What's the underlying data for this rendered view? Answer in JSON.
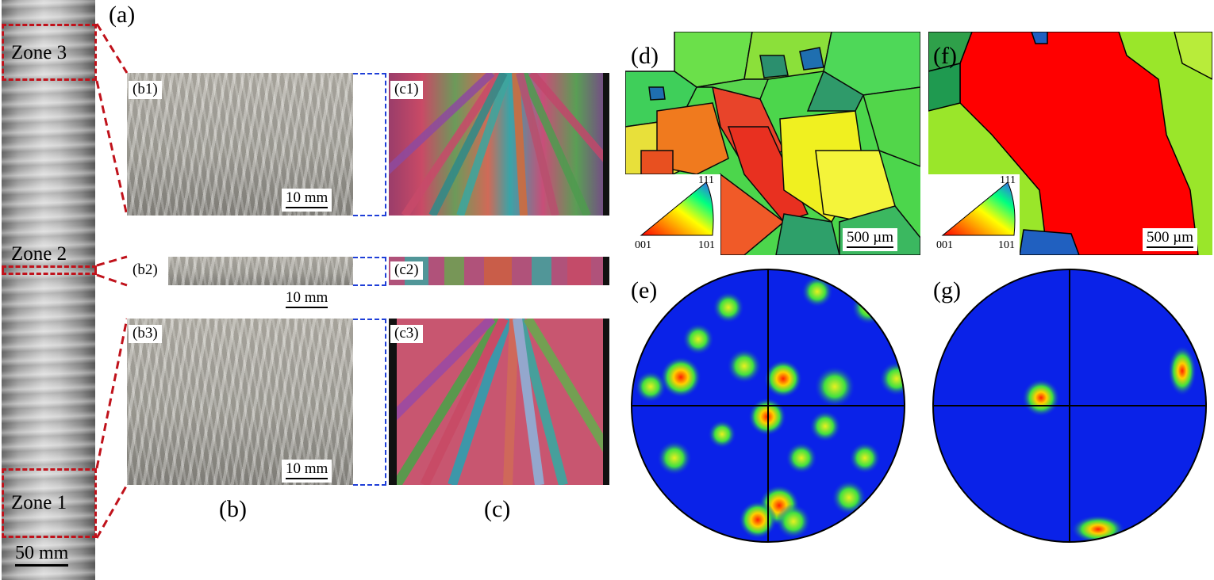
{
  "panels": {
    "a": "(a)",
    "b": "(b)",
    "c": "(c)",
    "d": "(d)",
    "e": "(e)",
    "f": "(f)",
    "g": "(g)",
    "b1": "(b1)",
    "b2": "(b2)",
    "b3": "(b3)",
    "c1": "(c1)",
    "c2": "(c2)",
    "c3": "(c3)"
  },
  "zones": {
    "zone3": "Zone 3",
    "zone2": "Zone 2",
    "zone1": "Zone 1"
  },
  "scale_bars": {
    "rod": "50 mm",
    "b1": "10 mm",
    "b2": "10 mm",
    "b3": "10 mm",
    "d": "500 µm",
    "f": "500 µm"
  },
  "ipf_legend": {
    "top": "111",
    "left": "001",
    "right": "101"
  },
  "colors": {
    "zone_outline": "#c0121b",
    "bracket": "#1f3fd8",
    "pole_background": "#0a22e8"
  }
}
